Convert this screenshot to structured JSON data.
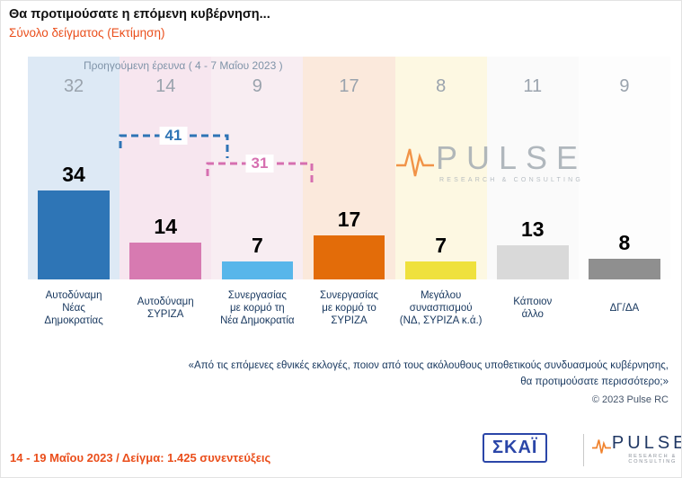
{
  "header": {
    "title": "Θα προτιμούσατε η επόμενη κυβέρνηση...",
    "subtitle": "Σύνολο δείγματος  (Εκτίμηση)"
  },
  "chart_data": {
    "type": "bar",
    "title": "Θα προτιμούσατε η επόμενη κυβέρνηση...",
    "subtitle": "Σύνολο δείγματος (Εκτίμηση)",
    "previous_label": "Προηγούμενη έρευνα ( 4 - 7 Μαΐου  2023 )",
    "categories": [
      "Αυτοδύναμη Νέας Δημοκρατίας",
      "Αυτοδύναμη ΣΥΡΙΖΑ",
      "Συνεργασίας με κορμό τη Νέα Δημοκρατία",
      "Συνεργασίας με κορμό το ΣΥΡΙΖΑ",
      "Μεγάλου συνασπισμού (ΝΔ, ΣΥΡΙΖΑ κ.ά.)",
      "Κάποιον άλλο",
      "ΔΓ/ΔΑ"
    ],
    "category_lines": [
      [
        "Αυτοδύναμη",
        "Νέας",
        "Δημοκρατίας"
      ],
      [
        "Αυτοδύναμη",
        "ΣΥΡΙΖΑ"
      ],
      [
        "Συνεργασίας",
        "με κορμό τη",
        "Νέα Δημοκρατία"
      ],
      [
        "Συνεργασίας",
        "με κορμό το",
        "ΣΥΡΙΖΑ"
      ],
      [
        "Μεγάλου",
        "συνασπισμού",
        "(ΝΔ, ΣΥΡΙΖΑ κ.ά.)"
      ],
      [
        "Κάποιον",
        "άλλο"
      ],
      [
        "ΔΓ/ΔΑ"
      ]
    ],
    "series": [
      {
        "name": "Εκτίμηση 14 - 19 Μαΐου 2023",
        "values": [
          34,
          14,
          7,
          17,
          7,
          13,
          8
        ]
      },
      {
        "name": "Προηγούμενη έρευνα 4 - 7 Μαΐου 2023",
        "values": [
          32,
          14,
          9,
          17,
          8,
          11,
          9
        ]
      }
    ],
    "bar_colors": [
      "#2e75b6",
      "#d77ab1",
      "#58b6ea",
      "#e36c09",
      "#efe13d",
      "#d9d9d9",
      "#8f8f8f"
    ],
    "bg_colors": [
      "#dde9f5",
      "#f7e6ef",
      "#f8edf2",
      "#fbe9dc",
      "#fdf8e2",
      "#fafafa",
      "#fdfdfd"
    ],
    "annotations": [
      {
        "label": "41",
        "value": 41,
        "color": "#2e74b5",
        "from": 0,
        "to": 2
      },
      {
        "label": "31",
        "value": 31,
        "color": "#d66fb0",
        "from": 1,
        "to": 3
      }
    ],
    "ylim": [
      0,
      40
    ],
    "grid": false,
    "legend": "none"
  },
  "watermark": {
    "text": "PULSE",
    "sub": "RESEARCH & CONSULTING"
  },
  "quote": {
    "line1": "«Από τις επόμενες εθνικές εκλογές, ποιον από τους ακόλουθους υποθετικούς συνδυασμούς κυβέρνησης,",
    "line2": "θα προτιμούσατε περισσότερο;»"
  },
  "copyright": "© 2023 Pulse RC",
  "footer": {
    "info": "14 - 19 Μαΐου  2023  /  Δείγμα:  1.425 συνεντεύξεις",
    "skai_logo": "ΣΚΑΪ",
    "pulse_logo": "PULSE",
    "pulse_sub": "RESEARCH & CONSULTING"
  }
}
